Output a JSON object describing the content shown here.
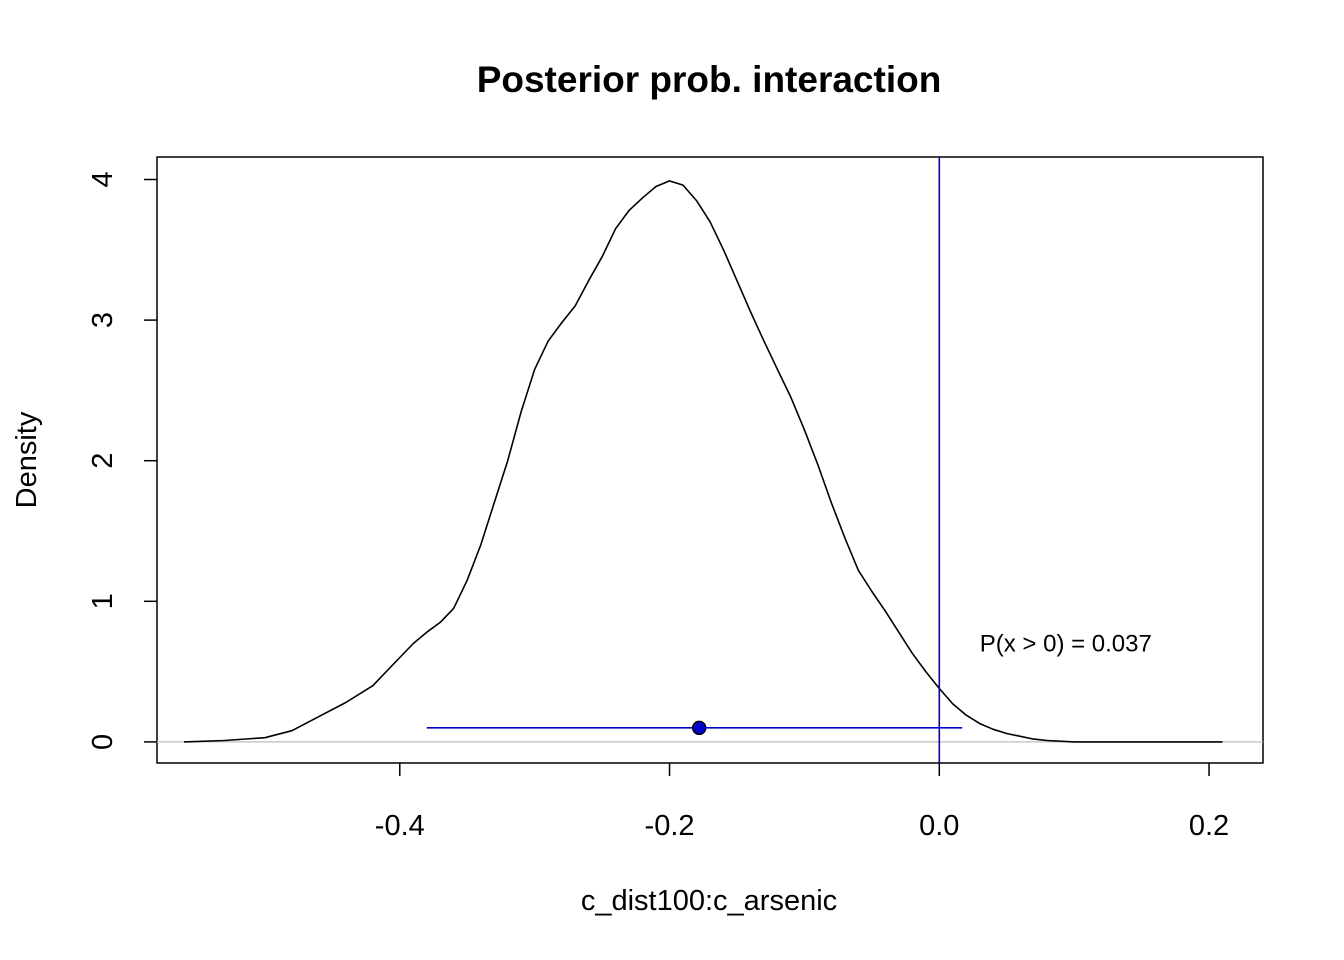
{
  "chart_data": {
    "type": "line",
    "title": "Posterior prob. interaction",
    "xlabel": "c_dist100:c_arsenic",
    "ylabel": "Density",
    "xlim": [
      -0.58,
      0.24
    ],
    "ylim": [
      -0.15,
      4.16
    ],
    "x_ticks": [
      -0.4,
      -0.2,
      0.0,
      0.2
    ],
    "x_tick_labels": [
      "-0.4",
      "-0.2",
      "0.0",
      "0.2"
    ],
    "y_ticks": [
      0,
      1,
      2,
      3,
      4
    ],
    "y_tick_labels": [
      "0",
      "1",
      "2",
      "3",
      "4"
    ],
    "series": [
      {
        "color": "#000000",
        "x": [
          -0.56,
          -0.53,
          -0.5,
          -0.48,
          -0.46,
          -0.44,
          -0.42,
          -0.4,
          -0.39,
          -0.38,
          -0.37,
          -0.36,
          -0.35,
          -0.34,
          -0.33,
          -0.32,
          -0.31,
          -0.3,
          -0.29,
          -0.28,
          -0.27,
          -0.26,
          -0.25,
          -0.24,
          -0.23,
          -0.22,
          -0.21,
          -0.2,
          -0.19,
          -0.18,
          -0.17,
          -0.16,
          -0.15,
          -0.14,
          -0.13,
          -0.12,
          -0.11,
          -0.1,
          -0.09,
          -0.08,
          -0.07,
          -0.06,
          -0.05,
          -0.04,
          -0.03,
          -0.02,
          -0.01,
          0.0,
          0.01,
          0.02,
          0.03,
          0.04,
          0.05,
          0.06,
          0.07,
          0.08,
          0.1,
          0.12,
          0.14,
          0.16,
          0.18,
          0.21
        ],
        "y": [
          0.0,
          0.01,
          0.03,
          0.08,
          0.18,
          0.28,
          0.4,
          0.6,
          0.7,
          0.78,
          0.85,
          0.95,
          1.15,
          1.4,
          1.7,
          2.0,
          2.35,
          2.65,
          2.85,
          2.98,
          3.1,
          3.28,
          3.45,
          3.65,
          3.78,
          3.87,
          3.95,
          3.99,
          3.96,
          3.85,
          3.7,
          3.5,
          3.28,
          3.06,
          2.85,
          2.65,
          2.45,
          2.22,
          1.97,
          1.7,
          1.45,
          1.22,
          1.07,
          0.93,
          0.78,
          0.63,
          0.5,
          0.38,
          0.27,
          0.19,
          0.13,
          0.09,
          0.06,
          0.04,
          0.02,
          0.01,
          0.0,
          0.0,
          0.0,
          0.0,
          0.0,
          0.0
        ]
      }
    ],
    "reference_line": {
      "x": 0.0,
      "color": "#0000CD"
    },
    "zero_line": {
      "y": 0,
      "color": "#BEBEBE"
    },
    "interval": {
      "low": -0.38,
      "high": 0.017,
      "point": -0.178,
      "y": 0.1,
      "color": "#0000CD"
    },
    "annotation": {
      "text": "P(x > 0) =  0.037",
      "x": 0.03,
      "y": 0.7
    }
  }
}
